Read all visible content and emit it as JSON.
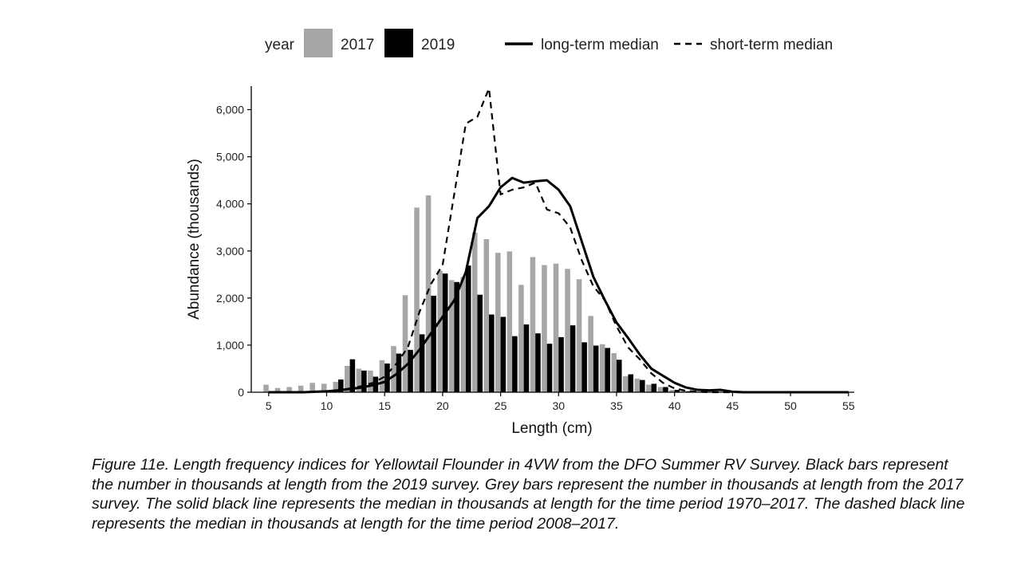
{
  "chart_data": {
    "type": "bar",
    "title": "",
    "xlabel": "Length (cm)",
    "ylabel": "Abundance (thousands)",
    "xlim": [
      3.5,
      55.5
    ],
    "ylim": [
      0,
      6500
    ],
    "xticks": [
      5,
      10,
      15,
      20,
      25,
      30,
      35,
      40,
      45,
      50,
      55
    ],
    "yticks": [
      0,
      1000,
      2000,
      3000,
      4000,
      5000,
      6000
    ],
    "ytick_labels": [
      "0",
      "1,000",
      "2,000",
      "3,000",
      "4,000",
      "5,000",
      "6,000"
    ],
    "grid": false,
    "legend": {
      "position": "top",
      "title": "year",
      "items": [
        {
          "label": "2017",
          "kind": "bar",
          "color": "#a6a6a6"
        },
        {
          "label": "2019",
          "kind": "bar",
          "color": "#000000"
        },
        {
          "label": "long-term median",
          "kind": "line-solid",
          "color": "#000000"
        },
        {
          "label": "short-term median",
          "kind": "line-dashed",
          "color": "#000000"
        }
      ]
    },
    "bar_series": [
      {
        "name": "2017",
        "color": "#a6a6a6",
        "x": [
          5,
          6,
          7,
          8,
          9,
          10,
          11,
          12,
          13,
          14,
          15,
          16,
          17,
          18,
          19,
          20,
          21,
          22,
          23,
          24,
          25,
          26,
          27,
          28,
          29,
          30,
          31,
          32,
          33,
          34,
          35,
          36,
          37,
          38,
          39,
          40,
          41,
          42,
          43,
          44,
          45
        ],
        "values": [
          160,
          90,
          110,
          140,
          200,
          180,
          220,
          560,
          500,
          460,
          680,
          980,
          2060,
          3920,
          4180,
          2580,
          2380,
          2450,
          3390,
          3250,
          2960,
          2990,
          2280,
          2870,
          2700,
          2730,
          2620,
          2400,
          1620,
          1020,
          830,
          340,
          290,
          160,
          110,
          50,
          30,
          20,
          10,
          5,
          0
        ]
      },
      {
        "name": "2019",
        "color": "#000000",
        "x": [
          5,
          6,
          7,
          8,
          9,
          10,
          11,
          12,
          13,
          14,
          15,
          16,
          17,
          18,
          19,
          20,
          21,
          22,
          23,
          24,
          25,
          26,
          27,
          28,
          29,
          30,
          31,
          32,
          33,
          34,
          35,
          36,
          37,
          38,
          39,
          40,
          41,
          42,
          43,
          44,
          45
        ],
        "values": [
          0,
          0,
          0,
          0,
          0,
          0,
          270,
          700,
          460,
          330,
          610,
          820,
          900,
          1230,
          2050,
          2520,
          2340,
          2690,
          2070,
          1650,
          1600,
          1190,
          1440,
          1250,
          1030,
          1170,
          1420,
          1060,
          990,
          940,
          690,
          380,
          260,
          180,
          110,
          50,
          20,
          10,
          5,
          0,
          0
        ]
      }
    ],
    "line_series": [
      {
        "name": "long-term median",
        "style": "solid",
        "x": [
          5,
          6,
          7,
          8,
          9,
          10,
          11,
          12,
          13,
          14,
          15,
          16,
          17,
          18,
          19,
          20,
          21,
          22,
          23,
          24,
          25,
          26,
          27,
          28,
          29,
          30,
          31,
          32,
          33,
          34,
          35,
          36,
          37,
          38,
          39,
          40,
          41,
          42,
          43,
          44,
          45,
          46,
          47,
          48,
          49,
          50,
          51,
          52,
          53,
          54,
          55
        ],
        "values": [
          0,
          0,
          0,
          0,
          10,
          20,
          40,
          70,
          100,
          150,
          220,
          380,
          600,
          900,
          1250,
          1600,
          1950,
          2550,
          3700,
          3950,
          4350,
          4550,
          4450,
          4480,
          4500,
          4300,
          3950,
          3200,
          2450,
          1950,
          1480,
          1150,
          800,
          500,
          350,
          200,
          100,
          50,
          40,
          50,
          10,
          0,
          0,
          0,
          0,
          0,
          0,
          0,
          0,
          0,
          0
        ]
      },
      {
        "name": "short-term median",
        "style": "dashed",
        "x": [
          5,
          6,
          7,
          8,
          9,
          10,
          11,
          12,
          13,
          14,
          15,
          16,
          17,
          18,
          19,
          20,
          21,
          22,
          23,
          24,
          25,
          26,
          27,
          28,
          29,
          30,
          31,
          32,
          33,
          34,
          35,
          36,
          37,
          38,
          39,
          40,
          41,
          42,
          43,
          44,
          45,
          46,
          47,
          48,
          49,
          50,
          51,
          52,
          53,
          54,
          55
        ],
        "values": [
          0,
          0,
          0,
          0,
          10,
          20,
          40,
          80,
          130,
          200,
          330,
          600,
          950,
          1700,
          2300,
          2700,
          4200,
          5700,
          5850,
          6450,
          4200,
          4300,
          4350,
          4450,
          3880,
          3800,
          3500,
          2800,
          2250,
          1950,
          1400,
          950,
          700,
          400,
          200,
          80,
          30,
          10,
          0,
          0,
          0,
          0,
          0,
          0,
          0,
          0,
          0,
          0,
          0,
          0,
          0
        ]
      }
    ]
  },
  "caption": "Figure 11e. Length frequency indices for Yellowtail Flounder in 4VW from the DFO Summer RV Survey. Black bars represent the number in thousands at length from the 2019 survey. Grey bars represent the number in thousands at length from the 2017 survey. The solid black line represents the median in thousands at length for the time period 1970–2017. The dashed black line represents the median in thousands at length for the time period 2008–2017."
}
